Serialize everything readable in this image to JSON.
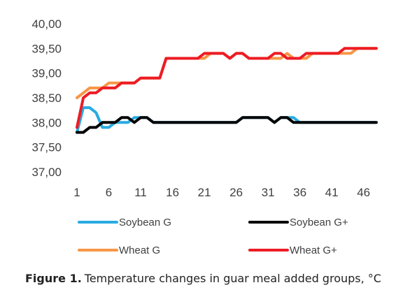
{
  "chart_data": {
    "type": "line",
    "title": "",
    "xlabel": "",
    "ylabel": "",
    "ylim": [
      37.0,
      40.0
    ],
    "y_ticks": [
      "40,00",
      "39,50",
      "39,00",
      "38,50",
      "38,00",
      "37,50",
      "37,00"
    ],
    "x_ticks": [
      "1",
      "6",
      "11",
      "16",
      "21",
      "26",
      "31",
      "36",
      "41",
      "46"
    ],
    "x": [
      1,
      2,
      3,
      4,
      5,
      6,
      7,
      8,
      9,
      10,
      11,
      12,
      13,
      14,
      15,
      16,
      17,
      18,
      19,
      20,
      21,
      22,
      23,
      24,
      25,
      26,
      27,
      28,
      29,
      30,
      31,
      32,
      33,
      34,
      35,
      36,
      37,
      38,
      39,
      40,
      41,
      42,
      43,
      44,
      45,
      46,
      47,
      48
    ],
    "grid": false,
    "legend_position": "bottom",
    "series": [
      {
        "name": "Soybean G",
        "color": "#29abe2",
        "values": [
          37.8,
          38.3,
          38.3,
          38.2,
          37.9,
          37.9,
          38.0,
          38.0,
          38.0,
          38.1,
          38.1,
          38.1,
          38.0,
          38.0,
          38.0,
          38.0,
          38.0,
          38.0,
          38.0,
          38.0,
          38.0,
          38.0,
          38.0,
          38.0,
          38.0,
          38.0,
          38.1,
          38.1,
          38.1,
          38.1,
          38.1,
          38.0,
          38.1,
          38.1,
          38.1,
          38.0,
          38.0,
          38.0,
          38.0,
          38.0,
          38.0,
          38.0,
          38.0,
          38.0,
          38.0,
          38.0,
          38.0,
          38.0
        ]
      },
      {
        "name": "Soybean G+",
        "color": "#000000",
        "values": [
          37.8,
          37.8,
          37.9,
          37.9,
          38.0,
          38.0,
          38.0,
          38.1,
          38.1,
          38.0,
          38.1,
          38.1,
          38.0,
          38.0,
          38.0,
          38.0,
          38.0,
          38.0,
          38.0,
          38.0,
          38.0,
          38.0,
          38.0,
          38.0,
          38.0,
          38.0,
          38.1,
          38.1,
          38.1,
          38.1,
          38.1,
          38.0,
          38.1,
          38.1,
          38.0,
          38.0,
          38.0,
          38.0,
          38.0,
          38.0,
          38.0,
          38.0,
          38.0,
          38.0,
          38.0,
          38.0,
          38.0,
          38.0
        ]
      },
      {
        "name": "Wheat G",
        "color": "#f79646",
        "values": [
          38.5,
          38.6,
          38.7,
          38.7,
          38.7,
          38.8,
          38.8,
          38.8,
          38.8,
          38.8,
          38.9,
          38.9,
          38.9,
          38.9,
          39.3,
          39.3,
          39.3,
          39.3,
          39.3,
          39.3,
          39.3,
          39.4,
          39.4,
          39.4,
          39.3,
          39.4,
          39.4,
          39.3,
          39.3,
          39.3,
          39.3,
          39.3,
          39.3,
          39.4,
          39.3,
          39.3,
          39.3,
          39.4,
          39.4,
          39.4,
          39.4,
          39.4,
          39.4,
          39.4,
          39.5,
          39.5,
          39.5,
          39.5
        ]
      },
      {
        "name": "Wheat G+",
        "color": "#ed1c24",
        "values": [
          37.9,
          38.5,
          38.6,
          38.6,
          38.7,
          38.7,
          38.7,
          38.8,
          38.8,
          38.8,
          38.9,
          38.9,
          38.9,
          38.9,
          39.3,
          39.3,
          39.3,
          39.3,
          39.3,
          39.3,
          39.4,
          39.4,
          39.4,
          39.4,
          39.3,
          39.4,
          39.4,
          39.3,
          39.3,
          39.3,
          39.3,
          39.4,
          39.4,
          39.3,
          39.3,
          39.3,
          39.4,
          39.4,
          39.4,
          39.4,
          39.4,
          39.4,
          39.5,
          39.5,
          39.5,
          39.5,
          39.5,
          39.5
        ]
      }
    ]
  },
  "caption": {
    "label": "Figure 1.",
    "text": "Temperature changes in guar meal added groups, °C"
  }
}
